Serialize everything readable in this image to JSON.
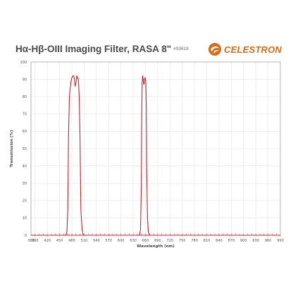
{
  "header": {
    "title": "Hα-Hβ-OIII Imaging Filter, RASA 8\"",
    "part_number": "#93618",
    "logo_text": "CELESTRON",
    "logo_icon": "celestron-swirl-icon",
    "logo_color": "#d86b19"
  },
  "chart_data": {
    "type": "line",
    "xlabel": "Wavelength (nm)",
    "ylabel": "Transmission (%)",
    "xlim": [
      380,
      990
    ],
    "ylim": [
      0,
      100
    ],
    "x_ticks": [
      380,
      390,
      420,
      450,
      480,
      510,
      540,
      570,
      600,
      630,
      660,
      690,
      720,
      750,
      780,
      810,
      840,
      870,
      900,
      930,
      960,
      990
    ],
    "y_ticks": [
      0,
      10,
      20,
      30,
      40,
      50,
      60,
      70,
      80,
      90,
      100
    ],
    "grid": true,
    "line_color": "#c8202b",
    "series": [
      {
        "x": [
          380,
          465,
          468,
          470,
          472,
          474,
          476,
          478,
          480,
          483,
          485,
          487,
          488,
          490,
          492,
          494,
          496,
          498,
          500,
          502,
          505,
          508,
          990
        ],
        "y": [
          0,
          0,
          2,
          15,
          60,
          80,
          85,
          89,
          91,
          92,
          92,
          88,
          86,
          88,
          92,
          91,
          90,
          80,
          55,
          15,
          3,
          0,
          0
        ]
      },
      {
        "x": [
          380,
          645,
          648,
          650,
          651,
          652,
          653,
          654,
          655,
          656,
          657,
          658,
          659,
          660,
          661,
          662,
          663,
          665,
          667,
          670,
          990
        ],
        "y": [
          0,
          0,
          3,
          30,
          70,
          88,
          92,
          91,
          89,
          87,
          88,
          90,
          91,
          90,
          88,
          75,
          40,
          10,
          2,
          0,
          0
        ]
      }
    ]
  }
}
